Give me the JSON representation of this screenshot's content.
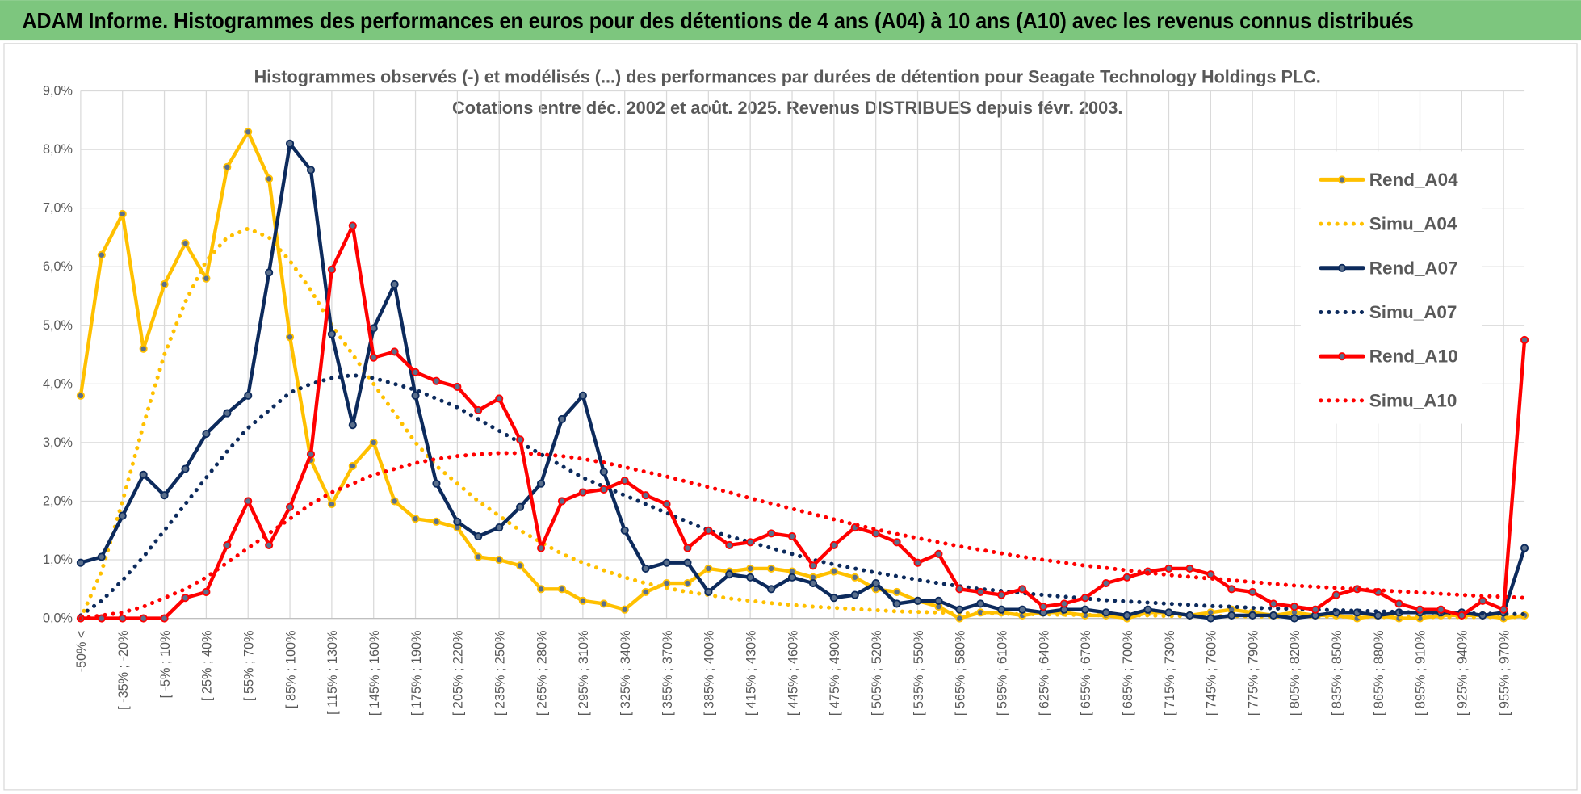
{
  "header": {
    "title": "ADAM Informe. Histogrammes des performances en euros pour des détentions de 4 ans (A04) à 10 ans (A10) avec les revenus connus distribués"
  },
  "chart_data": {
    "type": "line",
    "title": "Histogrammes observés (-) et modélisés (...) des performances par durées de détention pour Seagate Technology Holdings PLC.",
    "subtitle": "Cotations entre déc. 2002 et août. 2025. Revenus DISTRIBUES depuis févr. 2003.",
    "categories": [
      "-50% <",
      null,
      "[ -35% ; -20%",
      null,
      "[ -5% ; 10%",
      null,
      "[ 25% ; 40%",
      null,
      "[ 55% ; 70%",
      null,
      "[ 85% ; 100%",
      null,
      "[ 115% ; 130%",
      null,
      "[ 145% ; 160%",
      null,
      "[ 175% ; 190%",
      null,
      "[ 205% ; 220%",
      null,
      "[ 235% ; 250%",
      null,
      "[ 265% ; 280%",
      null,
      "[ 295% ; 310%",
      null,
      "[ 325% ; 340%",
      null,
      "[ 355% ; 370%",
      null,
      "[ 385% ; 400%",
      null,
      "[ 415% ; 430%",
      null,
      "[ 445% ; 460%",
      null,
      "[ 475% ; 490%",
      null,
      "[ 505% ; 520%",
      null,
      "[ 535% ; 550%",
      null,
      "[ 565% ; 580%",
      null,
      "[ 595% ; 610%",
      null,
      "[ 625% ; 640%",
      null,
      "[ 655% ; 670%",
      null,
      "[ 685% ; 700%",
      null,
      "[ 715% ; 730%",
      null,
      "[ 745% ; 760%",
      null,
      "[ 775% ; 790%",
      null,
      "[ 805% ; 820%",
      null,
      "[ 835% ; 850%",
      null,
      "[ 865% ; 880%",
      null,
      "[ 895% ; 910%",
      null,
      "[ 925% ; 940%",
      null,
      "[ 955% ; 970%",
      null
    ],
    "ylim": [
      0,
      9
    ],
    "yticks": [
      {
        "value": 0,
        "label": "0,0%"
      },
      {
        "value": 1,
        "label": "1,0%"
      },
      {
        "value": 2,
        "label": "2,0%"
      },
      {
        "value": 3,
        "label": "3,0%"
      },
      {
        "value": 4,
        "label": "4,0%"
      },
      {
        "value": 5,
        "label": "5,0%"
      },
      {
        "value": 6,
        "label": "6,0%"
      },
      {
        "value": 7,
        "label": "7,0%"
      },
      {
        "value": 8,
        "label": "8,0%"
      },
      {
        "value": 9,
        "label": "9,0%"
      }
    ],
    "grid": true,
    "legend": "right",
    "series": [
      {
        "name": "Rend_A04",
        "color": "#ffc000",
        "line_style": "solid",
        "markers": true,
        "values": [
          3.8,
          6.2,
          6.9,
          4.6,
          5.7,
          6.4,
          5.8,
          7.7,
          8.3,
          7.5,
          4.8,
          2.7,
          1.95,
          2.6,
          3.0,
          2.0,
          1.7,
          1.65,
          1.55,
          1.05,
          1.0,
          0.9,
          0.5,
          0.5,
          0.3,
          0.25,
          0.15,
          0.45,
          0.6,
          0.6,
          0.85,
          0.8,
          0.85,
          0.85,
          0.8,
          0.7,
          0.8,
          0.7,
          0.5,
          0.45,
          0.3,
          0.2,
          0.0,
          0.1,
          0.1,
          0.05,
          0.1,
          0.1,
          0.05,
          0.05,
          0.0,
          0.1,
          0.1,
          0.05,
          0.1,
          0.15,
          0.1,
          0.05,
          0.1,
          0.05,
          0.05,
          0.0,
          0.05,
          0.0,
          0.0,
          0.05,
          0.05,
          0.05,
          0.0,
          0.05
        ]
      },
      {
        "name": "Simu_A04",
        "color": "#ffc000",
        "line_style": "dotted",
        "markers": false,
        "values": [
          0.0,
          0.8,
          2.0,
          3.3,
          4.5,
          5.4,
          6.1,
          6.5,
          6.65,
          6.5,
          6.1,
          5.6,
          5.0,
          4.5,
          4.0,
          3.5,
          3.0,
          2.6,
          2.3,
          2.0,
          1.75,
          1.5,
          1.3,
          1.1,
          0.95,
          0.82,
          0.7,
          0.6,
          0.52,
          0.45,
          0.4,
          0.34,
          0.3,
          0.26,
          0.23,
          0.2,
          0.18,
          0.16,
          0.14,
          0.12,
          0.11,
          0.1,
          0.09,
          0.08,
          0.08,
          0.07,
          0.07,
          0.06,
          0.06,
          0.05,
          0.05,
          0.05,
          0.04,
          0.04,
          0.04,
          0.04,
          0.03,
          0.03,
          0.03,
          0.03,
          0.03,
          0.03,
          0.02,
          0.02,
          0.02,
          0.02,
          0.02,
          0.02,
          0.02,
          0.02
        ]
      },
      {
        "name": "Rend_A07",
        "color": "#0c2a5c",
        "line_style": "solid",
        "markers": true,
        "values": [
          0.95,
          1.05,
          1.75,
          2.45,
          2.1,
          2.55,
          3.15,
          3.5,
          3.8,
          5.9,
          8.1,
          7.65,
          4.85,
          3.3,
          4.95,
          5.7,
          3.8,
          2.3,
          1.65,
          1.4,
          1.55,
          1.9,
          2.3,
          3.4,
          3.8,
          2.5,
          1.5,
          0.85,
          0.95,
          0.95,
          0.45,
          0.75,
          0.7,
          0.5,
          0.7,
          0.6,
          0.35,
          0.4,
          0.6,
          0.25,
          0.3,
          0.3,
          0.15,
          0.25,
          0.15,
          0.15,
          0.1,
          0.15,
          0.15,
          0.1,
          0.05,
          0.15,
          0.1,
          0.05,
          0.0,
          0.05,
          0.05,
          0.05,
          0.0,
          0.05,
          0.1,
          0.1,
          0.05,
          0.1,
          0.1,
          0.1,
          0.1,
          0.05,
          0.1,
          1.2
        ]
      },
      {
        "name": "Simu_A07",
        "color": "#0c2a5c",
        "line_style": "dotted",
        "markers": false,
        "values": [
          0.05,
          0.3,
          0.65,
          1.05,
          1.5,
          1.95,
          2.4,
          2.85,
          3.25,
          3.55,
          3.85,
          4.0,
          4.1,
          4.15,
          4.1,
          4.0,
          3.9,
          3.75,
          3.6,
          3.4,
          3.2,
          3.0,
          2.8,
          2.6,
          2.4,
          2.25,
          2.1,
          1.95,
          1.8,
          1.65,
          1.5,
          1.4,
          1.3,
          1.2,
          1.1,
          1.0,
          0.92,
          0.85,
          0.78,
          0.72,
          0.66,
          0.6,
          0.55,
          0.5,
          0.47,
          0.43,
          0.4,
          0.37,
          0.34,
          0.31,
          0.29,
          0.27,
          0.25,
          0.23,
          0.21,
          0.2,
          0.18,
          0.17,
          0.16,
          0.15,
          0.14,
          0.13,
          0.12,
          0.11,
          0.1,
          0.1,
          0.09,
          0.08,
          0.08,
          0.07
        ]
      },
      {
        "name": "Rend_A10",
        "color": "#ff0000",
        "line_style": "solid",
        "markers": true,
        "values": [
          0,
          0,
          0,
          0,
          0,
          0.35,
          0.45,
          1.25,
          2.0,
          1.25,
          1.9,
          2.8,
          5.95,
          6.7,
          4.45,
          4.55,
          4.2,
          4.05,
          3.95,
          3.55,
          3.75,
          3.05,
          1.2,
          2.0,
          2.15,
          2.2,
          2.35,
          2.1,
          1.95,
          1.2,
          1.5,
          1.25,
          1.3,
          1.45,
          1.4,
          0.9,
          1.25,
          1.55,
          1.45,
          1.3,
          0.95,
          1.1,
          0.5,
          0.45,
          0.4,
          0.5,
          0.2,
          0.25,
          0.35,
          0.6,
          0.7,
          0.8,
          0.85,
          0.85,
          0.75,
          0.5,
          0.45,
          0.25,
          0.2,
          0.15,
          0.4,
          0.5,
          0.45,
          0.25,
          0.15,
          0.15,
          0.05,
          0.3,
          0.15,
          4.75
        ]
      },
      {
        "name": "Simu_A10",
        "color": "#ff0000",
        "line_style": "dotted",
        "markers": false,
        "values": [
          0,
          0.05,
          0.1,
          0.2,
          0.35,
          0.5,
          0.7,
          0.95,
          1.2,
          1.45,
          1.7,
          1.95,
          2.15,
          2.3,
          2.45,
          2.55,
          2.65,
          2.72,
          2.77,
          2.8,
          2.82,
          2.82,
          2.8,
          2.77,
          2.72,
          2.66,
          2.58,
          2.5,
          2.42,
          2.33,
          2.24,
          2.15,
          2.05,
          1.96,
          1.87,
          1.78,
          1.69,
          1.6,
          1.52,
          1.44,
          1.37,
          1.3,
          1.23,
          1.17,
          1.11,
          1.05,
          1.0,
          0.95,
          0.9,
          0.86,
          0.82,
          0.78,
          0.74,
          0.71,
          0.68,
          0.65,
          0.62,
          0.59,
          0.56,
          0.54,
          0.52,
          0.5,
          0.48,
          0.46,
          0.44,
          0.42,
          0.4,
          0.38,
          0.37,
          0.35
        ]
      }
    ]
  }
}
